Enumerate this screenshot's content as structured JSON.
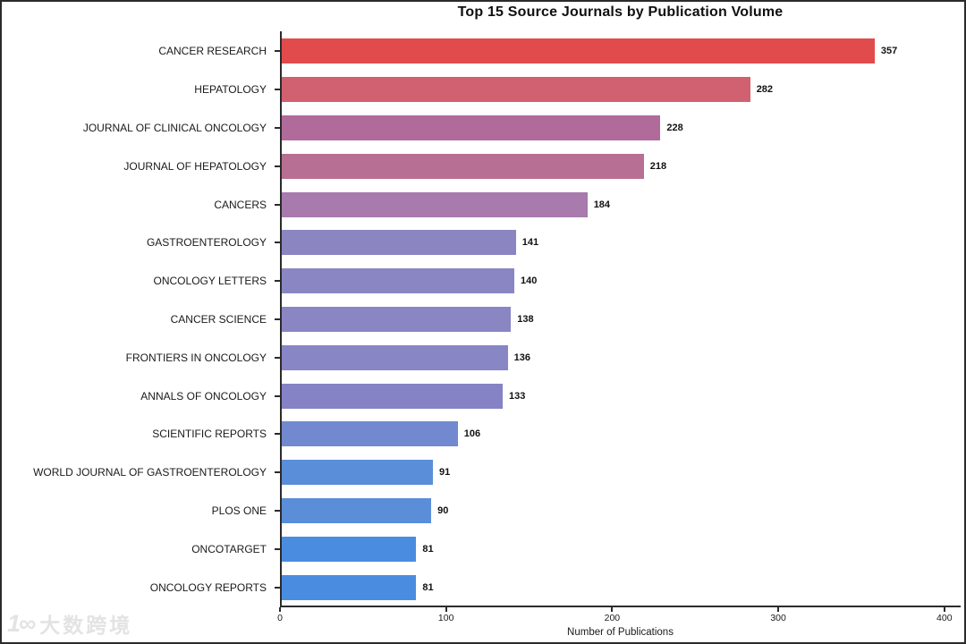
{
  "watermark": {
    "logo": "1∞",
    "text": "大数跨境"
  },
  "chart_data": {
    "type": "bar",
    "orientation": "horizontal",
    "title": "Top 15 Source Journals by Publication Volume",
    "xlabel": "Number of Publications",
    "ylabel": "",
    "xlim": [
      0,
      410
    ],
    "x_ticks": [
      0,
      100,
      200,
      300,
      400
    ],
    "grid": false,
    "legend": "none",
    "value_labels_shown": true,
    "categories": [
      "CANCER RESEARCH",
      "HEPATOLOGY",
      "JOURNAL OF CLINICAL ONCOLOGY",
      "JOURNAL OF HEPATOLOGY",
      "CANCERS",
      "GASTROENTEROLOGY",
      "ONCOLOGY LETTERS",
      "CANCER SCIENCE",
      "FRONTIERS IN ONCOLOGY",
      "ANNALS OF ONCOLOGY",
      "SCIENTIFIC REPORTS",
      "WORLD JOURNAL OF GASTROENTEROLOGY",
      "PLOS ONE",
      "ONCOTARGET",
      "ONCOLOGY REPORTS"
    ],
    "values": [
      357,
      282,
      228,
      218,
      184,
      141,
      140,
      138,
      136,
      133,
      106,
      91,
      90,
      81,
      81
    ],
    "bar_colors": [
      "#e14b4b",
      "#d16170",
      "#b16b9a",
      "#b76f93",
      "#a87aad",
      "#8b85c2",
      "#8a86c3",
      "#8a86c3",
      "#8886c4",
      "#8583c5",
      "#7289cf",
      "#5a8ed8",
      "#5a8ed8",
      "#4a8de0",
      "#4a8de0"
    ],
    "spine_color": "#2b2b2b"
  }
}
